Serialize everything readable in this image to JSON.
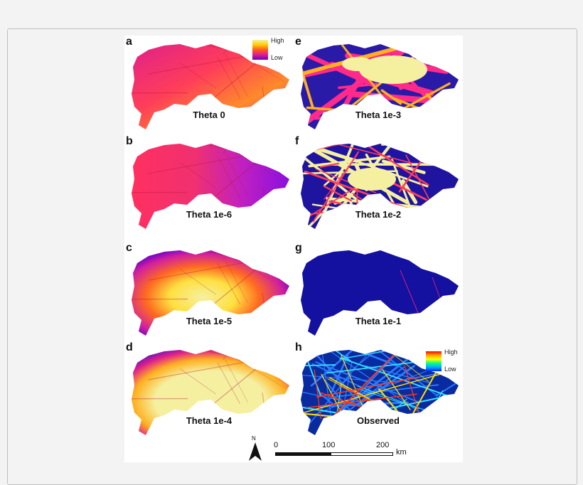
{
  "panels": [
    {
      "letter": "a",
      "caption": "Theta 0",
      "style": "warm"
    },
    {
      "letter": "e",
      "caption": "Theta 1e-3",
      "style": "network"
    },
    {
      "letter": "b",
      "caption": "Theta 1e-6",
      "style": "magenta"
    },
    {
      "letter": "f",
      "caption": "Theta 1e-2",
      "style": "dense-network"
    },
    {
      "letter": "c",
      "caption": "Theta 1e-5",
      "style": "center-yellow"
    },
    {
      "letter": "g",
      "caption": "Theta 1e-1",
      "style": "blue"
    },
    {
      "letter": "d",
      "caption": "Theta 1e-4",
      "style": "wide-yellow"
    },
    {
      "letter": "h",
      "caption": "Observed",
      "style": "observed"
    }
  ],
  "legend_warm": {
    "high": "High",
    "low": "Low",
    "colors": [
      "#f5f0a0",
      "#ffcc00",
      "#ff5a1f",
      "#e0208a",
      "#6a00c8"
    ]
  },
  "legend_rainbow": {
    "high": "High",
    "low": "Low",
    "colors": [
      "#ff0000",
      "#ffaa00",
      "#ffff00",
      "#00ff88",
      "#00aaff",
      "#0022ff"
    ]
  },
  "scale": {
    "t0": "0",
    "t1": "100",
    "t2": "200",
    "unit": "km"
  },
  "north": {
    "label": "N"
  }
}
